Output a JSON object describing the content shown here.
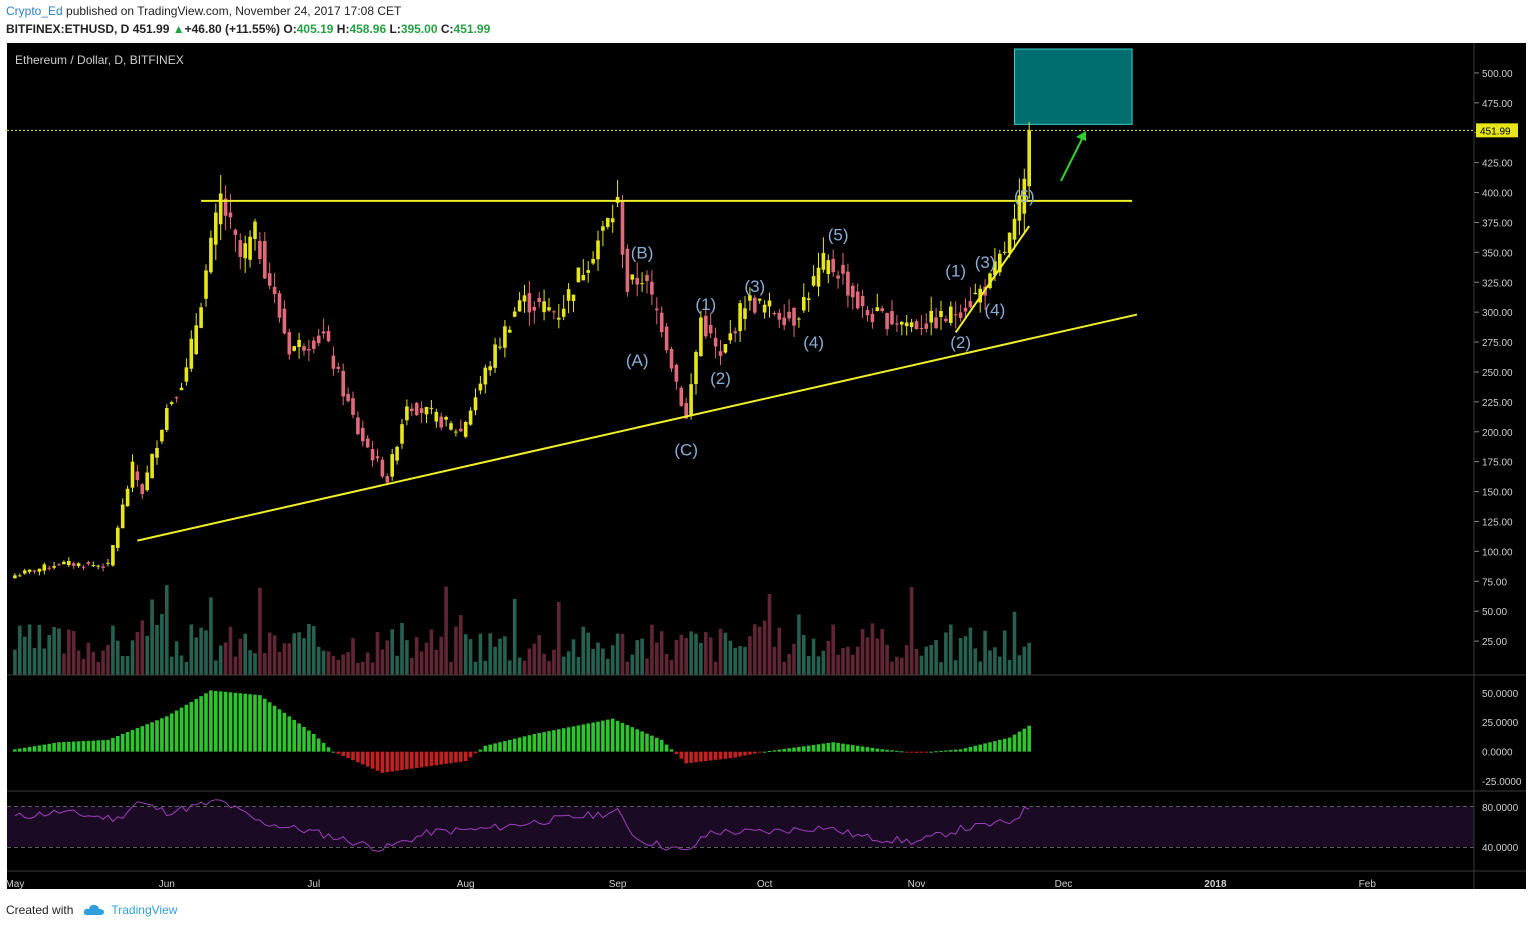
{
  "header": {
    "user": "Crypto_Ed",
    "published_text": " published on TradingView.com, November 24, 2017 17:08 CET",
    "symbol": "BITFINEX:ETHUSD, D",
    "last": "451.99",
    "change": "+46.80 (+11.55%)",
    "o_label": "O:",
    "o": "405.19",
    "h_label": "H:",
    "h": "458.96",
    "l_label": "L:",
    "l": "395.00",
    "c_label": "C:",
    "c": "451.99"
  },
  "footer": {
    "created_with": "Created with",
    "brand": "TradingView"
  },
  "colors": {
    "background": "#000000",
    "up": "#e6e61a",
    "down": "#e06a7a",
    "trendline": "#f0f02a",
    "channel": "#38d8e8",
    "wave_label": "#8aaed8",
    "macd_up": "#2ec42e",
    "macd_down": "#c42020",
    "rsi": "#a040c0",
    "target_box": "#006e6e"
  },
  "chart_data": [
    {
      "type": "candlestick",
      "title": "Ethereum / Dollar, D, BITFINEX",
      "y_ticks": [
        "500.00",
        "475.00",
        "450.00",
        "425.00",
        "400.00",
        "375.00",
        "350.00",
        "325.00",
        "300.00",
        "275.00",
        "250.00",
        "225.00",
        "200.00",
        "175.00",
        "150.00",
        "125.00",
        "100.00",
        "75.00",
        "50.00",
        "25.00"
      ],
      "ylim": [
        0,
        520
      ],
      "x_labels": [
        "May",
        "Jun",
        "Jul",
        "Aug",
        "Sep",
        "Oct",
        "Nov",
        "Dec",
        "2018",
        "Feb"
      ],
      "last_price_label": "451.99",
      "close_anchors": [
        {
          "date": "2017-05-01",
          "close": 80
        },
        {
          "date": "2017-05-10",
          "close": 90
        },
        {
          "date": "2017-05-20",
          "close": 88
        },
        {
          "date": "2017-05-25",
          "close": 170
        },
        {
          "date": "2017-05-27",
          "close": 150
        },
        {
          "date": "2017-06-01",
          "close": 220
        },
        {
          "date": "2017-06-05",
          "close": 250
        },
        {
          "date": "2017-06-12",
          "close": 395
        },
        {
          "date": "2017-06-16",
          "close": 345
        },
        {
          "date": "2017-06-19",
          "close": 365
        },
        {
          "date": "2017-06-26",
          "close": 270
        },
        {
          "date": "2017-07-03",
          "close": 280
        },
        {
          "date": "2017-07-10",
          "close": 200
        },
        {
          "date": "2017-07-16",
          "close": 160
        },
        {
          "date": "2017-07-20",
          "close": 225
        },
        {
          "date": "2017-07-31",
          "close": 200
        },
        {
          "date": "2017-08-05",
          "close": 250
        },
        {
          "date": "2017-08-12",
          "close": 310
        },
        {
          "date": "2017-08-20",
          "close": 300
        },
        {
          "date": "2017-08-28",
          "close": 360
        },
        {
          "date": "2017-09-01",
          "close": 390
        },
        {
          "date": "2017-09-03",
          "close": 320
        },
        {
          "date": "2017-09-06",
          "close": 330
        },
        {
          "date": "2017-09-10",
          "close": 290
        },
        {
          "date": "2017-09-15",
          "close": 210
        },
        {
          "date": "2017-09-18",
          "close": 295
        },
        {
          "date": "2017-09-22",
          "close": 260
        },
        {
          "date": "2017-09-27",
          "close": 310
        },
        {
          "date": "2017-10-07",
          "close": 295
        },
        {
          "date": "2017-10-13",
          "close": 340
        },
        {
          "date": "2017-10-16",
          "close": 335
        },
        {
          "date": "2017-10-21",
          "close": 300
        },
        {
          "date": "2017-10-25",
          "close": 295
        },
        {
          "date": "2017-11-01",
          "close": 290
        },
        {
          "date": "2017-11-07",
          "close": 295
        },
        {
          "date": "2017-11-12",
          "close": 310
        },
        {
          "date": "2017-11-16",
          "close": 325
        },
        {
          "date": "2017-11-21",
          "close": 370
        },
        {
          "date": "2017-11-23",
          "close": 405
        },
        {
          "date": "2017-11-24",
          "close": 451.99
        }
      ],
      "annotations": [
        {
          "text": "(A)",
          "date": "2017-09-05",
          "price": 255
        },
        {
          "text": "(B)",
          "date": "2017-09-06",
          "price": 345
        },
        {
          "text": "(C)",
          "date": "2017-09-15",
          "price": 180
        },
        {
          "text": "(1)",
          "date": "2017-09-19",
          "price": 302
        },
        {
          "text": "(2)",
          "date": "2017-09-22",
          "price": 240
        },
        {
          "text": "(3)",
          "date": "2017-09-29",
          "price": 317
        },
        {
          "text": "(4)",
          "date": "2017-10-11",
          "price": 270
        },
        {
          "text": "(5)",
          "date": "2017-10-16",
          "price": 360
        },
        {
          "text": "(1)",
          "date": "2017-11-09",
          "price": 330
        },
        {
          "text": "(2)",
          "date": "2017-11-10",
          "price": 270
        },
        {
          "text": "(3)",
          "date": "2017-11-15",
          "price": 337
        },
        {
          "text": "(4)",
          "date": "2017-11-17",
          "price": 297
        },
        {
          "text": "(5)",
          "date": "2017-11-23",
          "price": 392
        }
      ],
      "lines": [
        {
          "name": "resistance",
          "from": {
            "date": "2017-06-08",
            "price": 393
          },
          "to": {
            "date": "2017-12-15",
            "price": 393
          }
        },
        {
          "name": "rising-support",
          "from": {
            "date": "2017-05-26",
            "price": 109
          },
          "to": {
            "date": "2017-12-16",
            "price": 298
          }
        },
        {
          "name": "wedge-support",
          "from": {
            "date": "2017-11-09",
            "price": 283
          },
          "to": {
            "date": "2017-11-24",
            "price": 372
          }
        }
      ],
      "target_zone": {
        "from_date": "2017-11-21",
        "to_date": "2017-12-15",
        "low": 457,
        "high": 520
      }
    },
    {
      "type": "bar",
      "title": "MACD histogram",
      "y_ticks": [
        "50.0000",
        "25.0000",
        "0.0000",
        "-25.0000"
      ],
      "ylim": [
        -30,
        60
      ],
      "anchors": [
        {
          "date": "2017-05-01",
          "value": 2
        },
        {
          "date": "2017-05-10",
          "value": 8
        },
        {
          "date": "2017-05-20",
          "value": 10
        },
        {
          "date": "2017-06-01",
          "value": 30
        },
        {
          "date": "2017-06-10",
          "value": 52
        },
        {
          "date": "2017-06-20",
          "value": 48
        },
        {
          "date": "2017-07-01",
          "value": 15
        },
        {
          "date": "2017-07-05",
          "value": 0
        },
        {
          "date": "2017-07-15",
          "value": -18
        },
        {
          "date": "2017-08-01",
          "value": -8
        },
        {
          "date": "2017-08-05",
          "value": 5
        },
        {
          "date": "2017-08-15",
          "value": 15
        },
        {
          "date": "2017-08-31",
          "value": 28
        },
        {
          "date": "2017-09-10",
          "value": 10
        },
        {
          "date": "2017-09-15",
          "value": -10
        },
        {
          "date": "2017-09-25",
          "value": -5
        },
        {
          "date": "2017-10-01",
          "value": 0
        },
        {
          "date": "2017-10-15",
          "value": 8
        },
        {
          "date": "2017-10-25",
          "value": 2
        },
        {
          "date": "2017-11-01",
          "value": -1
        },
        {
          "date": "2017-11-10",
          "value": 2
        },
        {
          "date": "2017-11-20",
          "value": 12
        },
        {
          "date": "2017-11-24",
          "value": 22
        }
      ]
    },
    {
      "type": "line",
      "title": "RSI",
      "y_ticks": [
        "80.0000",
        "40.0000"
      ],
      "ylim": [
        20,
        90
      ],
      "anchors": [
        {
          "date": "2017-05-01",
          "value": 70
        },
        {
          "date": "2017-05-10",
          "value": 75
        },
        {
          "date": "2017-05-22",
          "value": 68
        },
        {
          "date": "2017-05-26",
          "value": 85
        },
        {
          "date": "2017-06-01",
          "value": 75
        },
        {
          "date": "2017-06-12",
          "value": 86
        },
        {
          "date": "2017-06-20",
          "value": 65
        },
        {
          "date": "2017-07-01",
          "value": 55
        },
        {
          "date": "2017-07-15",
          "value": 38
        },
        {
          "date": "2017-07-25",
          "value": 55
        },
        {
          "date": "2017-08-05",
          "value": 58
        },
        {
          "date": "2017-08-15",
          "value": 65
        },
        {
          "date": "2017-09-01",
          "value": 75
        },
        {
          "date": "2017-09-05",
          "value": 48
        },
        {
          "date": "2017-09-15",
          "value": 35
        },
        {
          "date": "2017-09-20",
          "value": 55
        },
        {
          "date": "2017-10-01",
          "value": 55
        },
        {
          "date": "2017-10-13",
          "value": 60
        },
        {
          "date": "2017-10-21",
          "value": 50
        },
        {
          "date": "2017-11-01",
          "value": 45
        },
        {
          "date": "2017-11-10",
          "value": 58
        },
        {
          "date": "2017-11-20",
          "value": 65
        },
        {
          "date": "2017-11-24",
          "value": 80
        }
      ]
    }
  ]
}
